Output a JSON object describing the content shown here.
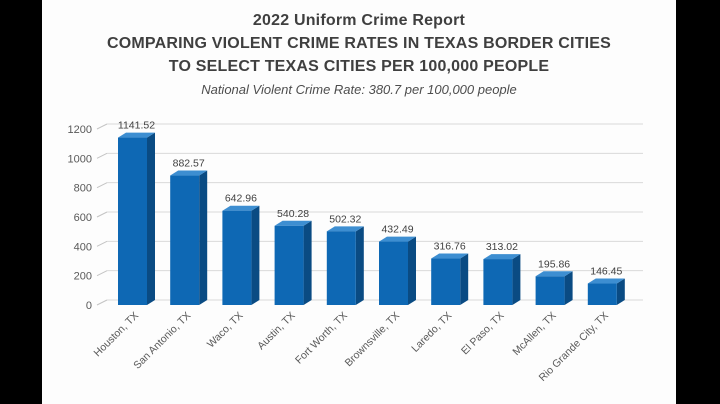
{
  "header": {
    "title_line1": "2022 Uniform Crime Report",
    "title_line2": "COMPARING VIOLENT CRIME RATES IN TEXAS BORDER CITIES",
    "title_line3": "TO SELECT TEXAS CITIES PER 100,000 PEOPLE",
    "subtitle": "National Violent Crime Rate: 380.7 per 100,000 people"
  },
  "chart_data": {
    "type": "bar",
    "style": "3d-column",
    "title": "2022 Uniform Crime Report — COMPARING VIOLENT CRIME RATES IN TEXAS BORDER CITIES TO SELECT TEXAS CITIES PER 100,000 PEOPLE",
    "subtitle": "National Violent Crime Rate: 380.7 per 100,000 people",
    "national_rate": 380.7,
    "categories": [
      "Houston, TX",
      "San Antonio, TX",
      "Waco, TX",
      "Austin, TX",
      "Fort Worth, TX",
      "Brownsville, TX",
      "Laredo, TX",
      "El Paso, TX",
      "McAllen, TX",
      "Rio Grande City, TX"
    ],
    "values": [
      1141.52,
      882.57,
      642.96,
      540.28,
      502.32,
      432.49,
      316.76,
      313.02,
      195.86,
      146.45
    ],
    "data_labels": [
      "1141.52",
      "882.57",
      "642.96",
      "540.28",
      "502.32",
      "432.49",
      "316.76",
      "313.02",
      "195.86",
      "146.45"
    ],
    "xlabel": "",
    "ylabel": "",
    "y_ticks": [
      0,
      200,
      400,
      600,
      800,
      1000,
      1200
    ],
    "ylim": [
      0,
      1200
    ],
    "grid": true,
    "legend": "none",
    "colors": {
      "bar_front": "#0e68b4",
      "bar_side": "#0a4b83",
      "bar_top": "#3d8ed1",
      "gridline": "#d9d9d9",
      "tick_connector": "#c4c4c4",
      "axis_text": "#595959",
      "value_label_text": "#404040",
      "title_text": "#3f3f3f",
      "canvas_bg": "#fdfdfd",
      "letterbox_bg": "#000000"
    }
  }
}
